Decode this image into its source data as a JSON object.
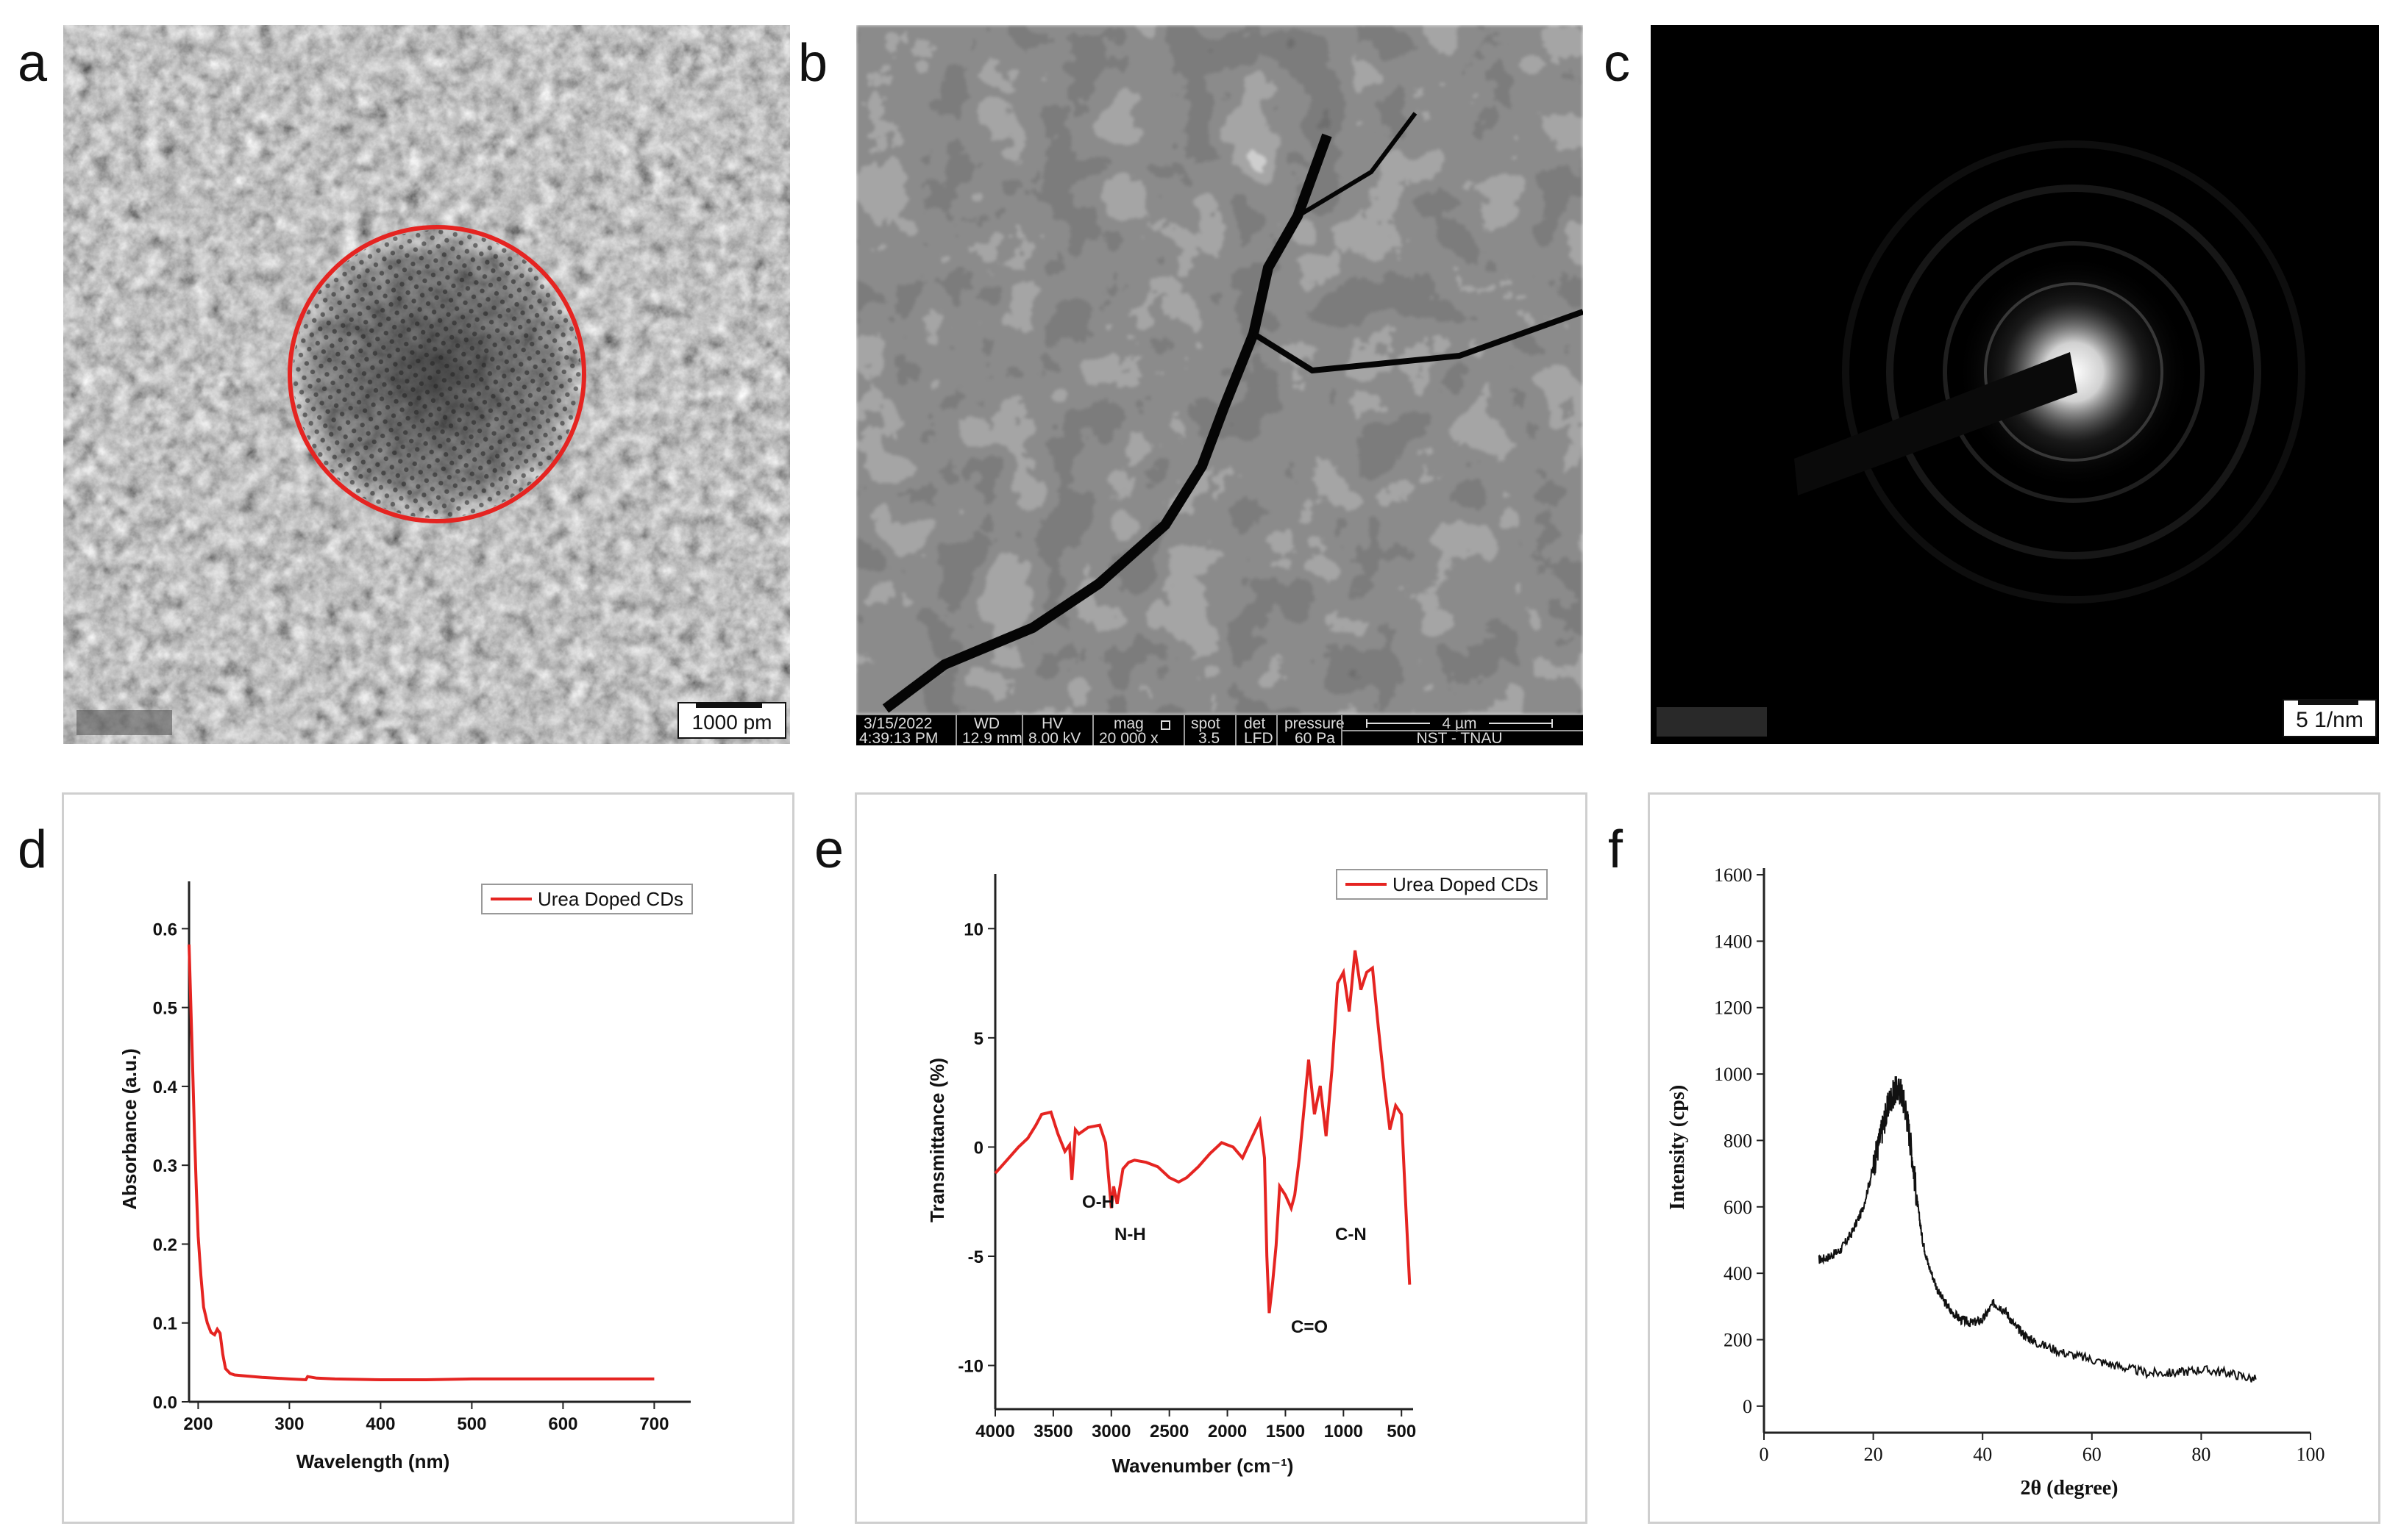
{
  "panel_labels": [
    "a",
    "b",
    "c",
    "d",
    "e",
    "f"
  ],
  "panel_a": {
    "scale_bar": "1000 pm",
    "overlay_color": "#e52421"
  },
  "panel_b": {
    "date": "3/15/2022",
    "time": "4:39:13 PM",
    "wd_label": "WD",
    "wd_value": "12.9 mm",
    "hv_label": "HV",
    "hv_value": "8.00 kV",
    "mag_label": "mag",
    "mag_value": "20 000 x",
    "spot_label": "spot",
    "spot_value": "3.5",
    "det_label": "det",
    "det_value": "LFD",
    "pressure_label": "pressure",
    "pressure_value": "60 Pa",
    "scale_label": "4 µm",
    "lab": "NST - TNAU"
  },
  "panel_c": {
    "scale_bar": "5 1/nm"
  },
  "chart_data": [
    {
      "type": "line",
      "ylabel": "Absorbance (a.u.)",
      "xlabel": "Wavelength (nm)",
      "legend": "Urea Doped CDs",
      "legend_position": "top-right",
      "color": "#e52421",
      "xlim": [
        190,
        740
      ],
      "ylim": [
        0,
        0.66
      ],
      "xticks": [
        "200",
        "300",
        "400",
        "500",
        "600",
        "700"
      ],
      "yticks": [
        "0.0",
        "0.1",
        "0.2",
        "0.3",
        "0.4",
        "0.5",
        "0.6"
      ],
      "x": [
        190,
        192,
        194,
        196,
        198,
        200,
        203,
        206,
        210,
        214,
        218,
        221,
        224,
        227,
        230,
        235,
        240,
        250,
        270,
        300,
        318,
        320,
        330,
        350,
        400,
        450,
        500,
        600,
        700
      ],
      "y": [
        0.58,
        0.5,
        0.42,
        0.34,
        0.27,
        0.21,
        0.16,
        0.12,
        0.1,
        0.088,
        0.085,
        0.092,
        0.087,
        0.06,
        0.042,
        0.036,
        0.034,
        0.033,
        0.031,
        0.029,
        0.028,
        0.032,
        0.03,
        0.029,
        0.028,
        0.028,
        0.029,
        0.029,
        0.029
      ]
    },
    {
      "type": "line",
      "ylabel": "Transmittance (%)",
      "xlabel": "Wavenumber (cm⁻¹)",
      "legend": "Urea Doped CDs",
      "legend_position": "top-right",
      "color": "#e52421",
      "x_reversed": true,
      "xlim": [
        4000,
        400
      ],
      "ylim": [
        -12,
        12.5
      ],
      "xticks": [
        "4000",
        "3500",
        "3000",
        "2500",
        "2000",
        "1500",
        "1000",
        "500"
      ],
      "yticks": [
        "-10",
        "-5",
        "0",
        "5",
        "10"
      ],
      "annotations": [
        "O-H",
        "N-H",
        "C=O",
        "C-N"
      ],
      "x": [
        4000,
        3900,
        3800,
        3720,
        3650,
        3600,
        3520,
        3460,
        3400,
        3360,
        3340,
        3310,
        3280,
        3200,
        3100,
        3050,
        3000,
        2980,
        2950,
        2900,
        2850,
        2800,
        2700,
        2600,
        2500,
        2420,
        2350,
        2250,
        2150,
        2050,
        2000,
        1950,
        1870,
        1800,
        1720,
        1680,
        1660,
        1640,
        1610,
        1580,
        1550,
        1500,
        1450,
        1420,
        1380,
        1300,
        1250,
        1200,
        1150,
        1100,
        1050,
        1000,
        950,
        900,
        850,
        800,
        750,
        700,
        650,
        600,
        550,
        500,
        460,
        430
      ],
      "y": [
        -1.2,
        -0.6,
        0.0,
        0.4,
        1.0,
        1.5,
        1.6,
        0.6,
        -0.2,
        0.1,
        -1.5,
        0.8,
        0.6,
        0.9,
        1.0,
        0.2,
        -2.8,
        -1.8,
        -2.6,
        -1.0,
        -0.7,
        -0.6,
        -0.7,
        -0.9,
        -1.4,
        -1.6,
        -1.4,
        -0.9,
        -0.3,
        0.2,
        0.1,
        0.0,
        -0.5,
        0.3,
        1.2,
        -0.5,
        -5.0,
        -7.6,
        -6.2,
        -4.5,
        -1.8,
        -2.2,
        -2.8,
        -2.2,
        -0.5,
        4.0,
        1.5,
        2.8,
        0.5,
        3.5,
        7.5,
        8.0,
        6.2,
        9.0,
        7.2,
        8.0,
        8.2,
        5.5,
        3.0,
        0.8,
        1.9,
        1.5,
        -3.0,
        -6.3
      ]
    },
    {
      "type": "line",
      "ylabel": "Intensity (cps)",
      "xlabel": "2θ (degree)",
      "color": "#111111",
      "xlim": [
        0,
        100
      ],
      "ylim": [
        -80,
        1620
      ],
      "xticks": [
        "0",
        "20",
        "40",
        "60",
        "80",
        "100"
      ],
      "yticks": [
        "0",
        "200",
        "400",
        "600",
        "800",
        "1000",
        "1200",
        "1400",
        "1600"
      ],
      "x": [
        10,
        12,
        14,
        16,
        18,
        20,
        21,
        22,
        23,
        24,
        25,
        26,
        27,
        28,
        29,
        30,
        32,
        34,
        36,
        38,
        40,
        42,
        44,
        46,
        48,
        50,
        55,
        60,
        65,
        70,
        75,
        80,
        85,
        90
      ],
      "y": [
        440,
        450,
        470,
        520,
        590,
        720,
        790,
        860,
        920,
        950,
        950,
        890,
        770,
        620,
        500,
        430,
        340,
        290,
        260,
        250,
        260,
        310,
        290,
        240,
        210,
        190,
        160,
        140,
        120,
        100,
        100,
        110,
        100,
        80
      ]
    }
  ]
}
